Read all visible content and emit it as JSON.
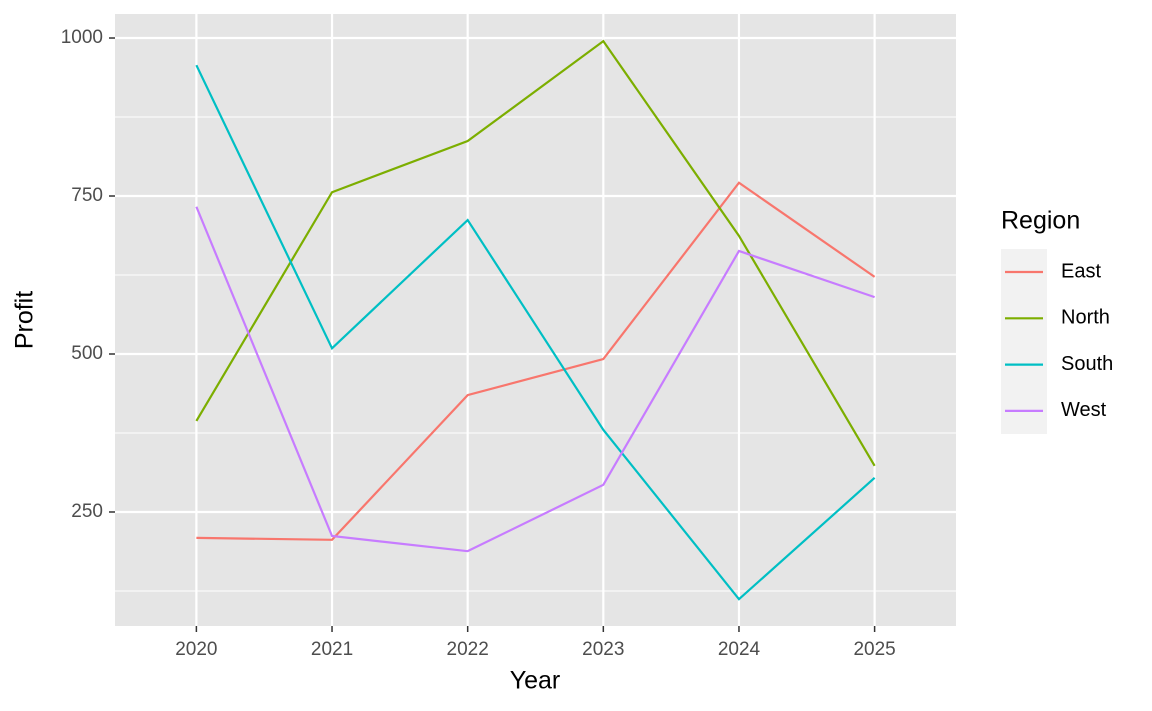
{
  "chart_data": {
    "type": "line",
    "x_label": "Year",
    "y_label": "Profit",
    "legend_title": "Region",
    "categories": [
      "2020",
      "2021",
      "2022",
      "2023",
      "2024",
      "2025"
    ],
    "series": [
      {
        "name": "East",
        "color": "#F8766D",
        "values": [
          209,
          206,
          435,
          492,
          771,
          622
        ]
      },
      {
        "name": "North",
        "color": "#7CAE00",
        "values": [
          394,
          756,
          837,
          995,
          687,
          323
        ]
      },
      {
        "name": "South",
        "color": "#00BFC4",
        "values": [
          957,
          509,
          712,
          380,
          112,
          304
        ]
      },
      {
        "name": "West",
        "color": "#C77CFF",
        "values": [
          733,
          212,
          188,
          293,
          663,
          590
        ]
      }
    ],
    "ylim": [
      69.6,
      1038
    ],
    "yticks": [
      250,
      500,
      750,
      1000
    ],
    "minor_yticks": [
      125,
      375,
      625,
      875
    ],
    "grid": true,
    "legend": "right"
  }
}
